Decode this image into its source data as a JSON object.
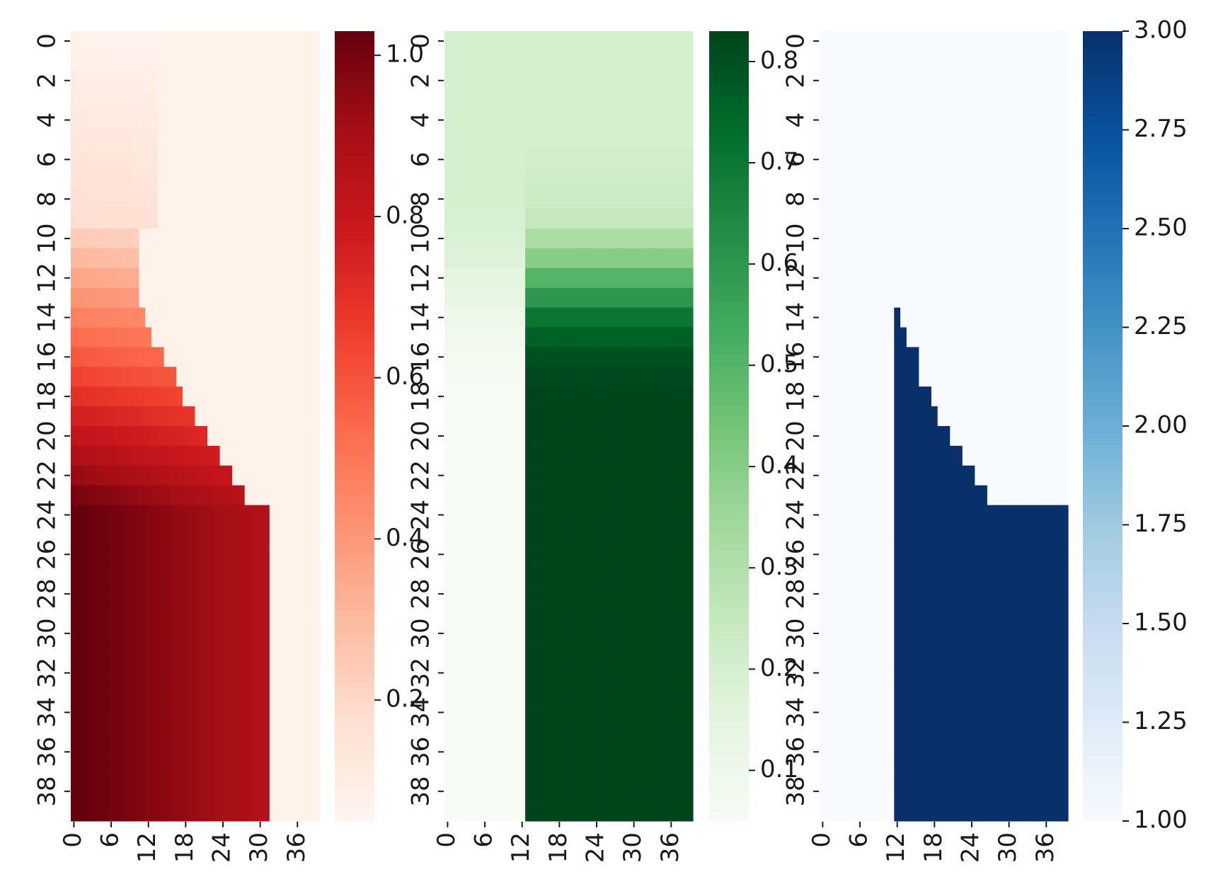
{
  "chart_data": [
    {
      "type": "heatmap",
      "colormap": "Reds",
      "rows": 40,
      "cols": 40,
      "row_ticks": [
        "0",
        "2",
        "4",
        "6",
        "8",
        "10",
        "12",
        "14",
        "16",
        "18",
        "20",
        "22",
        "24",
        "26",
        "28",
        "30",
        "32",
        "34",
        "36",
        "38"
      ],
      "col_ticks": [
        "0",
        "6",
        "12",
        "18",
        "24",
        "30",
        "36"
      ],
      "vmin": 0.05,
      "vmax": 1.03,
      "colorbar_ticks": [
        "0.2",
        "0.4",
        "0.6",
        "0.8",
        "1.0"
      ],
      "colorbar_tick_values": [
        0.2,
        0.4,
        0.6,
        0.8,
        1.0
      ],
      "boundary_col_by_row": [
        14,
        14,
        14,
        14,
        14,
        14,
        14,
        14,
        14,
        14,
        11,
        11,
        11,
        11,
        12,
        13,
        15,
        17,
        18,
        20,
        22,
        24,
        26,
        28,
        32,
        32,
        32,
        32,
        32,
        32,
        32,
        32,
        32,
        32,
        32,
        32,
        32,
        32,
        32,
        32
      ],
      "description": "upper-triangle-like region near zero; lower-left values rise toward ~1.0 with increasing row, decreasing slightly with column"
    },
    {
      "type": "heatmap",
      "colormap": "Greens",
      "rows": 40,
      "cols": 40,
      "row_ticks": [
        "0",
        "2",
        "4",
        "6",
        "8",
        "10",
        "12",
        "14",
        "16",
        "18",
        "20",
        "22",
        "24",
        "26",
        "28",
        "30",
        "32",
        "34",
        "36",
        "38"
      ],
      "col_ticks": [
        "0",
        "6",
        "12",
        "18",
        "24",
        "30",
        "36"
      ],
      "vmin": 0.05,
      "vmax": 0.83,
      "colorbar_ticks": [
        "0.1",
        "0.2",
        "0.3",
        "0.4",
        "0.5",
        "0.6",
        "0.7",
        "0.8"
      ],
      "colorbar_tick_values": [
        0.1,
        0.2,
        0.3,
        0.4,
        0.5,
        0.6,
        0.7,
        0.8
      ],
      "split_col": 13,
      "left_values_by_row": [
        0.2,
        0.2,
        0.2,
        0.2,
        0.2,
        0.2,
        0.2,
        0.2,
        0.2,
        0.19,
        0.18,
        0.17,
        0.15,
        0.13,
        0.11,
        0.09,
        0.07,
        0.06,
        0.05,
        0.05,
        0.05,
        0.05,
        0.05,
        0.05,
        0.05,
        0.05,
        0.05,
        0.05,
        0.05,
        0.05,
        0.05,
        0.05,
        0.05,
        0.05,
        0.05,
        0.05,
        0.05,
        0.05,
        0.05,
        0.05
      ],
      "right_values_by_row": [
        0.2,
        0.2,
        0.2,
        0.2,
        0.2,
        0.2,
        0.21,
        0.22,
        0.23,
        0.25,
        0.32,
        0.4,
        0.5,
        0.6,
        0.7,
        0.76,
        0.8,
        0.82,
        0.83,
        0.83,
        0.83,
        0.83,
        0.83,
        0.83,
        0.83,
        0.83,
        0.83,
        0.83,
        0.83,
        0.83,
        0.83,
        0.83,
        0.83,
        0.83,
        0.83,
        0.83,
        0.83,
        0.83,
        0.83,
        0.83
      ]
    },
    {
      "type": "heatmap",
      "colormap": "Blues",
      "rows": 40,
      "cols": 40,
      "row_ticks": [
        "0",
        "2",
        "4",
        "6",
        "8",
        "10",
        "12",
        "14",
        "16",
        "18",
        "20",
        "22",
        "24",
        "26",
        "28",
        "30",
        "32",
        "34",
        "36",
        "38"
      ],
      "col_ticks": [
        "0",
        "6",
        "12",
        "18",
        "24",
        "30",
        "36"
      ],
      "vmin": 1.0,
      "vmax": 3.0,
      "colorbar_ticks": [
        "1.00",
        "1.25",
        "1.50",
        "1.75",
        "2.00",
        "2.25",
        "2.50",
        "2.75",
        "3.00"
      ],
      "colorbar_tick_values": [
        1.0,
        1.25,
        1.5,
        1.75,
        2.0,
        2.25,
        2.5,
        2.75,
        3.0
      ],
      "start_col": 12,
      "end_col_by_row": [
        0,
        0,
        0,
        0,
        0,
        0,
        0,
        0,
        0,
        0,
        0,
        0,
        0,
        0,
        13,
        14,
        16,
        16,
        18,
        19,
        21,
        23,
        25,
        27,
        32,
        32,
        32,
        32,
        32,
        32,
        32,
        32,
        32,
        32,
        32,
        32,
        32,
        32,
        32,
        32
      ],
      "low_value": 1.0,
      "high_value": 3.0
    }
  ]
}
